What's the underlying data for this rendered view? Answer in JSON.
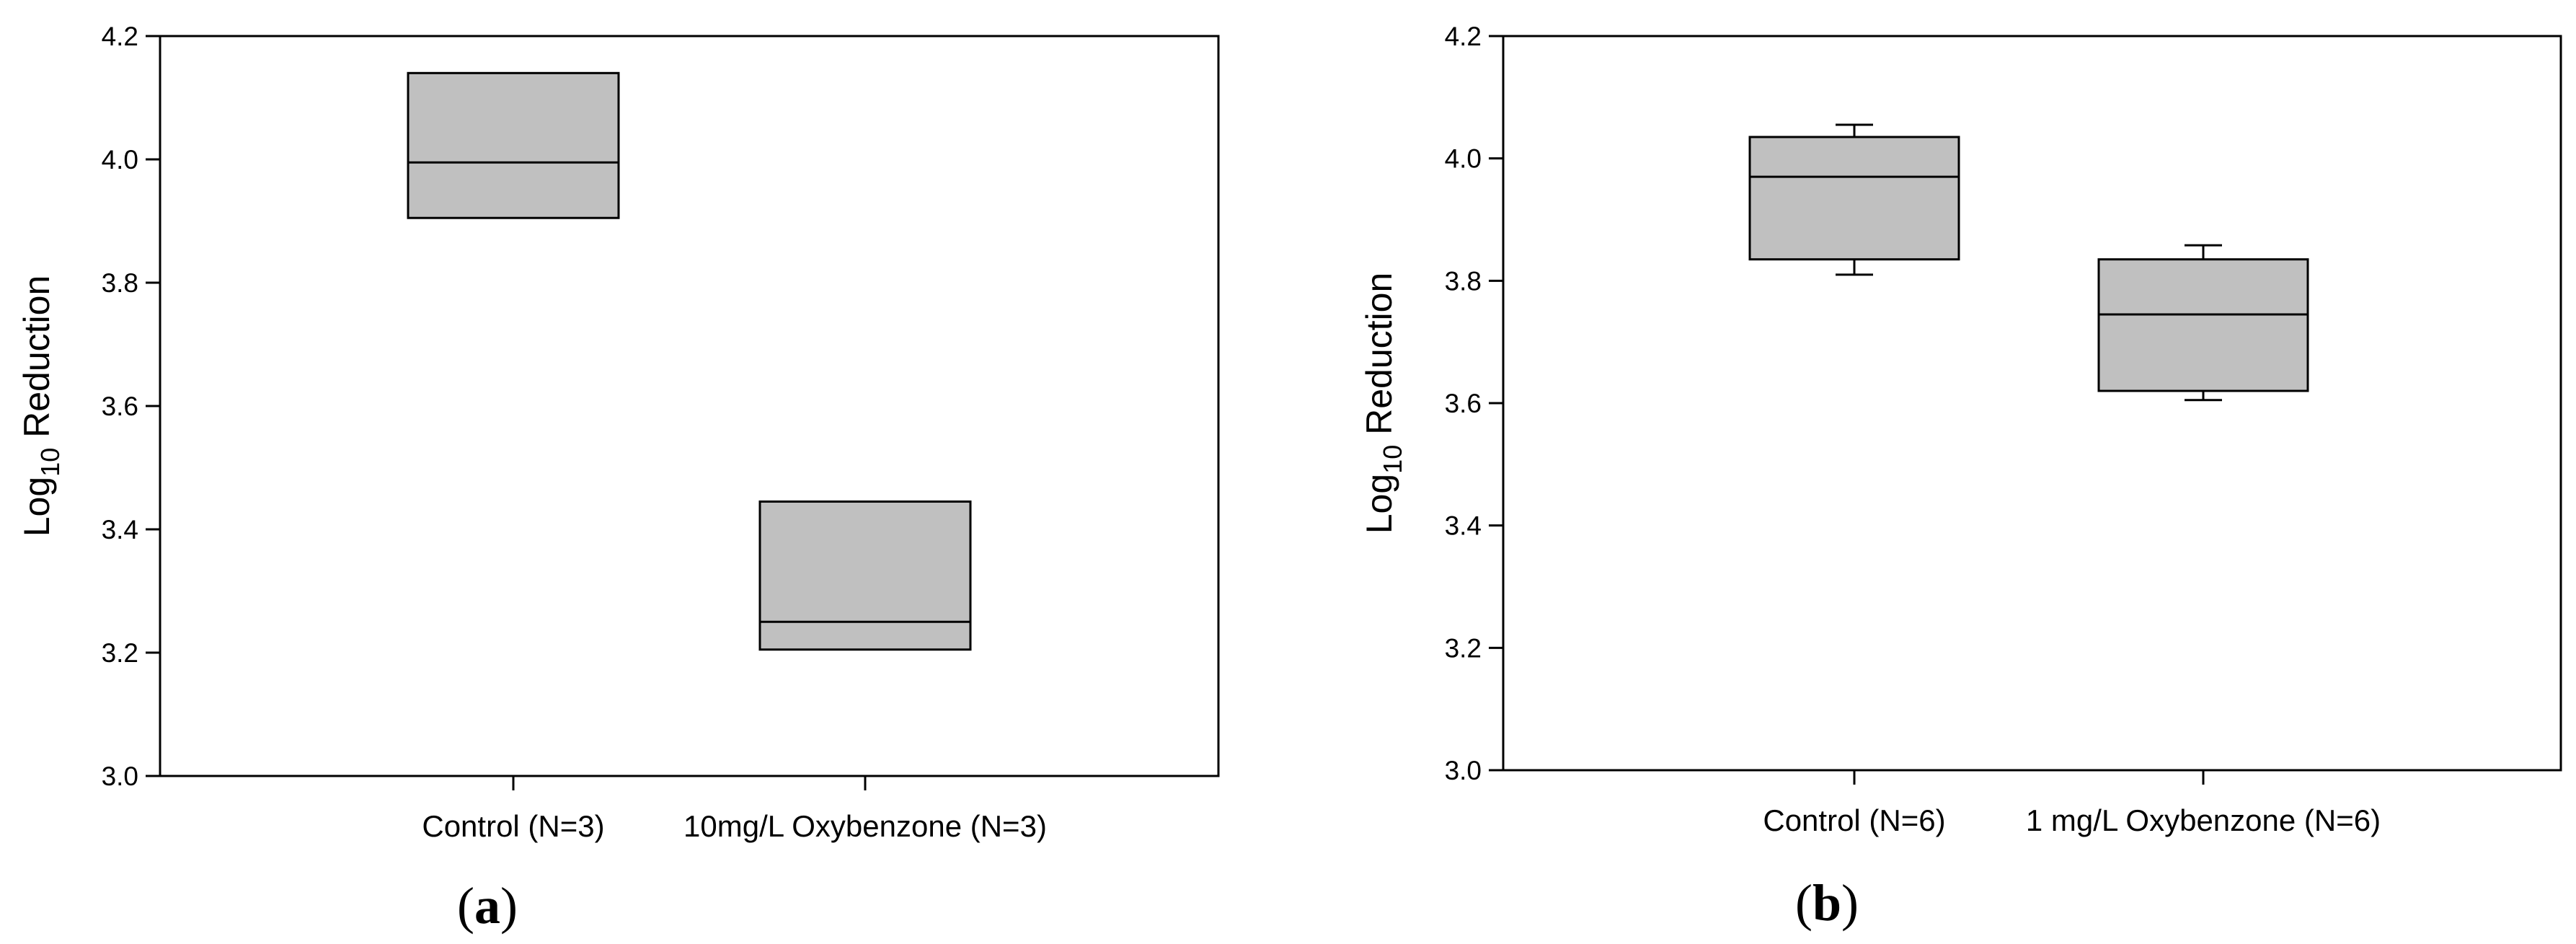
{
  "chart_data": [
    {
      "type": "box",
      "panel_label": "a",
      "ylabel": {
        "prefix": "Log",
        "subscript": "10",
        "suffix": " Reduction"
      },
      "xlabel": "",
      "ylim": [
        3.0,
        4.2
      ],
      "yticks": [
        "3.0",
        "3.2",
        "3.4",
        "3.6",
        "3.8",
        "4.0",
        "4.2"
      ],
      "categories": [
        "Control (N=3)",
        "10mg/L Oxybenzone (N=3)"
      ],
      "boxes": [
        {
          "category": "Control (N=3)",
          "q1": 3.905,
          "median": 3.995,
          "q3": 4.14
        },
        {
          "category": "10mg/L Oxybenzone (N=3)",
          "q1": 3.205,
          "median": 3.25,
          "q3": 3.445
        }
      ],
      "grid": false,
      "legend": "none"
    },
    {
      "type": "box",
      "panel_label": "b",
      "ylabel": {
        "prefix": "Log",
        "subscript": "10",
        "suffix": " Reduction"
      },
      "xlabel": "",
      "ylim": [
        3.0,
        4.2
      ],
      "yticks": [
        "3.0",
        "3.2",
        "3.4",
        "3.6",
        "3.8",
        "4.0",
        "4.2"
      ],
      "categories": [
        "Control (N=6)",
        "1 mg/L Oxybenzone (N=6)"
      ],
      "boxes": [
        {
          "category": "Control (N=6)",
          "whisker_low": 3.81,
          "q1": 3.835,
          "median": 3.97,
          "q3": 4.035,
          "whisker_high": 4.055
        },
        {
          "category": "1 mg/L Oxybenzone (N=6)",
          "whisker_low": 3.605,
          "q1": 3.62,
          "median": 3.745,
          "q3": 3.835,
          "whisker_high": 3.858
        }
      ],
      "grid": false,
      "legend": "none"
    }
  ],
  "colors": {
    "box_fill": "#c0c0c0",
    "stroke": "#000000",
    "background": "#ffffff"
  }
}
